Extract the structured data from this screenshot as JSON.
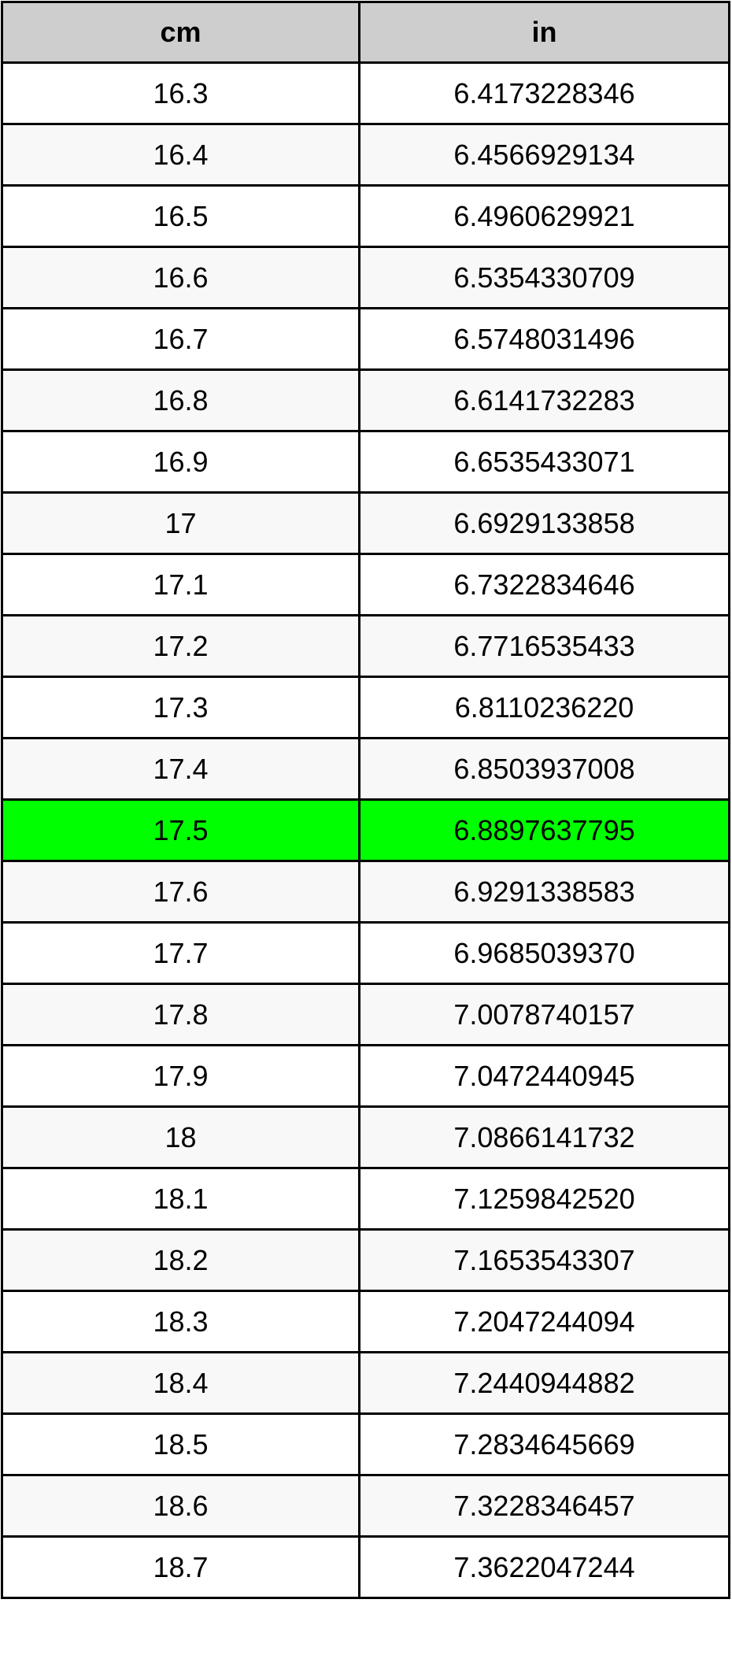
{
  "headers": [
    "cm",
    "in"
  ],
  "highlight_color": "#00ff00",
  "highlighted_row": 12,
  "rows": [
    [
      "16.3",
      "6.4173228346"
    ],
    [
      "16.4",
      "6.4566929134"
    ],
    [
      "16.5",
      "6.4960629921"
    ],
    [
      "16.6",
      "6.5354330709"
    ],
    [
      "16.7",
      "6.5748031496"
    ],
    [
      "16.8",
      "6.6141732283"
    ],
    [
      "16.9",
      "6.6535433071"
    ],
    [
      "17",
      "6.6929133858"
    ],
    [
      "17.1",
      "6.7322834646"
    ],
    [
      "17.2",
      "6.7716535433"
    ],
    [
      "17.3",
      "6.8110236220"
    ],
    [
      "17.4",
      "6.8503937008"
    ],
    [
      "17.5",
      "6.8897637795"
    ],
    [
      "17.6",
      "6.9291338583"
    ],
    [
      "17.7",
      "6.9685039370"
    ],
    [
      "17.8",
      "7.0078740157"
    ],
    [
      "17.9",
      "7.0472440945"
    ],
    [
      "18",
      "7.0866141732"
    ],
    [
      "18.1",
      "7.1259842520"
    ],
    [
      "18.2",
      "7.1653543307"
    ],
    [
      "18.3",
      "7.2047244094"
    ],
    [
      "18.4",
      "7.2440944882"
    ],
    [
      "18.5",
      "7.2834645669"
    ],
    [
      "18.6",
      "7.3228346457"
    ],
    [
      "18.7",
      "7.3622047244"
    ]
  ]
}
